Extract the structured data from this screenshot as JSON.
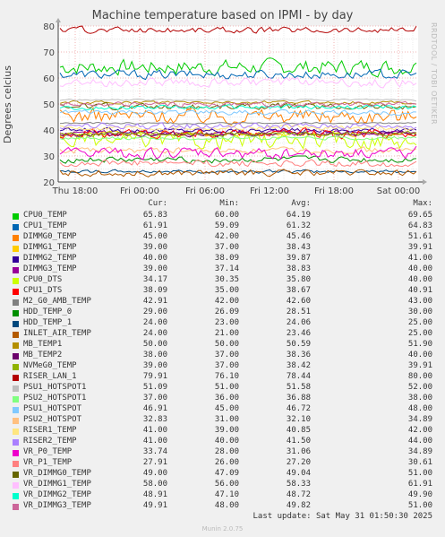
{
  "chart_data": {
    "type": "line",
    "title": "Machine temperature based on IPMI - by day",
    "ylabel": "Degrees celcius",
    "ylim": [
      20,
      80
    ],
    "yticks": [
      20,
      30,
      40,
      50,
      60,
      70,
      80
    ],
    "xticks": [
      "Thu 18:00",
      "Fri 00:00",
      "Fri 06:00",
      "Fri 12:00",
      "Fri 18:00",
      "Sat 00:00"
    ],
    "grid": true,
    "legend_columns": [
      "Cur:",
      "Min:",
      "Avg:",
      "Max:"
    ],
    "series": [
      {
        "name": "CPU0_TEMP",
        "color": "#00cc00",
        "cur": "65.83",
        "min": "60.00",
        "avg": "64.19",
        "max": "69.65"
      },
      {
        "name": "CPU1_TEMP",
        "color": "#0066b3",
        "cur": "61.91",
        "min": "59.09",
        "avg": "61.32",
        "max": "64.83"
      },
      {
        "name": "DIMMG0_TEMP",
        "color": "#ff8000",
        "cur": "45.00",
        "min": "42.00",
        "avg": "45.46",
        "max": "51.61"
      },
      {
        "name": "DIMMG1_TEMP",
        "color": "#ffcc00",
        "cur": "39.00",
        "min": "37.00",
        "avg": "38.43",
        "max": "39.91"
      },
      {
        "name": "DIMMG2_TEMP",
        "color": "#330099",
        "cur": "40.00",
        "min": "38.09",
        "avg": "39.87",
        "max": "41.00"
      },
      {
        "name": "DIMMG3_TEMP",
        "color": "#990099",
        "cur": "39.00",
        "min": "37.14",
        "avg": "38.83",
        "max": "40.00"
      },
      {
        "name": "CPU0_DTS",
        "color": "#ccff00",
        "cur": "34.17",
        "min": "30.35",
        "avg": "35.80",
        "max": "40.00"
      },
      {
        "name": "CPU1_DTS",
        "color": "#ff0000",
        "cur": "38.09",
        "min": "35.00",
        "avg": "38.67",
        "max": "40.91"
      },
      {
        "name": "M2_G0_AMB_TEMP",
        "color": "#808080",
        "cur": "42.91",
        "min": "42.00",
        "avg": "42.60",
        "max": "43.00"
      },
      {
        "name": "HDD_TEMP_0",
        "color": "#008f00",
        "cur": "29.00",
        "min": "26.09",
        "avg": "28.51",
        "max": "30.00"
      },
      {
        "name": "HDD_TEMP_1",
        "color": "#00487d",
        "cur": "24.00",
        "min": "23.00",
        "avg": "24.06",
        "max": "25.00"
      },
      {
        "name": "INLET_AIR_TEMP",
        "color": "#b35a00",
        "cur": "24.00",
        "min": "21.00",
        "avg": "23.46",
        "max": "25.00"
      },
      {
        "name": "MB_TEMP1",
        "color": "#b38f00",
        "cur": "50.00",
        "min": "50.00",
        "avg": "50.59",
        "max": "51.90"
      },
      {
        "name": "MB_TEMP2",
        "color": "#6b006b",
        "cur": "38.00",
        "min": "37.00",
        "avg": "38.36",
        "max": "40.00"
      },
      {
        "name": "NVMeG0_TEMP",
        "color": "#8fb300",
        "cur": "39.00",
        "min": "37.00",
        "avg": "38.42",
        "max": "39.91"
      },
      {
        "name": "RISER_LAN_1",
        "color": "#b30000",
        "cur": "79.91",
        "min": "76.10",
        "avg": "78.44",
        "max": "80.00"
      },
      {
        "name": "PSU1_HOTSPOT1",
        "color": "#bebebe",
        "cur": "51.09",
        "min": "51.00",
        "avg": "51.58",
        "max": "52.00"
      },
      {
        "name": "PSU2_HOTSPOT1",
        "color": "#80ff80",
        "cur": "37.00",
        "min": "36.00",
        "avg": "36.88",
        "max": "38.00"
      },
      {
        "name": "PSU1_HOTSPOT",
        "color": "#80c9ff",
        "cur": "46.91",
        "min": "45.00",
        "avg": "46.72",
        "max": "48.00"
      },
      {
        "name": "PSU2_HOTSPOT",
        "color": "#ffc080",
        "cur": "32.83",
        "min": "31.00",
        "avg": "32.10",
        "max": "34.89"
      },
      {
        "name": "RISER1_TEMP",
        "color": "#ffe680",
        "cur": "41.00",
        "min": "39.00",
        "avg": "40.85",
        "max": "42.00"
      },
      {
        "name": "RISER2_TEMP",
        "color": "#aa80ff",
        "cur": "41.00",
        "min": "40.00",
        "avg": "41.50",
        "max": "44.00"
      },
      {
        "name": "VR_P0_TEMP",
        "color": "#ee00cc",
        "cur": "33.74",
        "min": "28.00",
        "avg": "31.06",
        "max": "34.89"
      },
      {
        "name": "VR_P1_TEMP",
        "color": "#ff8080",
        "cur": "27.91",
        "min": "26.00",
        "avg": "27.20",
        "max": "30.61"
      },
      {
        "name": "VR_DIMMG0_TEMP",
        "color": "#666600",
        "cur": "49.00",
        "min": "47.09",
        "avg": "49.04",
        "max": "51.00"
      },
      {
        "name": "VR_DIMMG1_TEMP",
        "color": "#ffbfff",
        "cur": "58.00",
        "min": "56.00",
        "avg": "58.33",
        "max": "61.91"
      },
      {
        "name": "VR_DIMMG2_TEMP",
        "color": "#00ffcc",
        "cur": "48.91",
        "min": "47.10",
        "avg": "48.72",
        "max": "49.90"
      },
      {
        "name": "VR_DIMMG3_TEMP",
        "color": "#cc6699",
        "cur": "49.91",
        "min": "48.00",
        "avg": "49.82",
        "max": "51.00"
      }
    ]
  },
  "side_text": "RRDTOOL / TOBI OETIKER",
  "last_update": "Last update: Sat May 31 01:50:30 2025",
  "footer": "Munin 2.0.75"
}
